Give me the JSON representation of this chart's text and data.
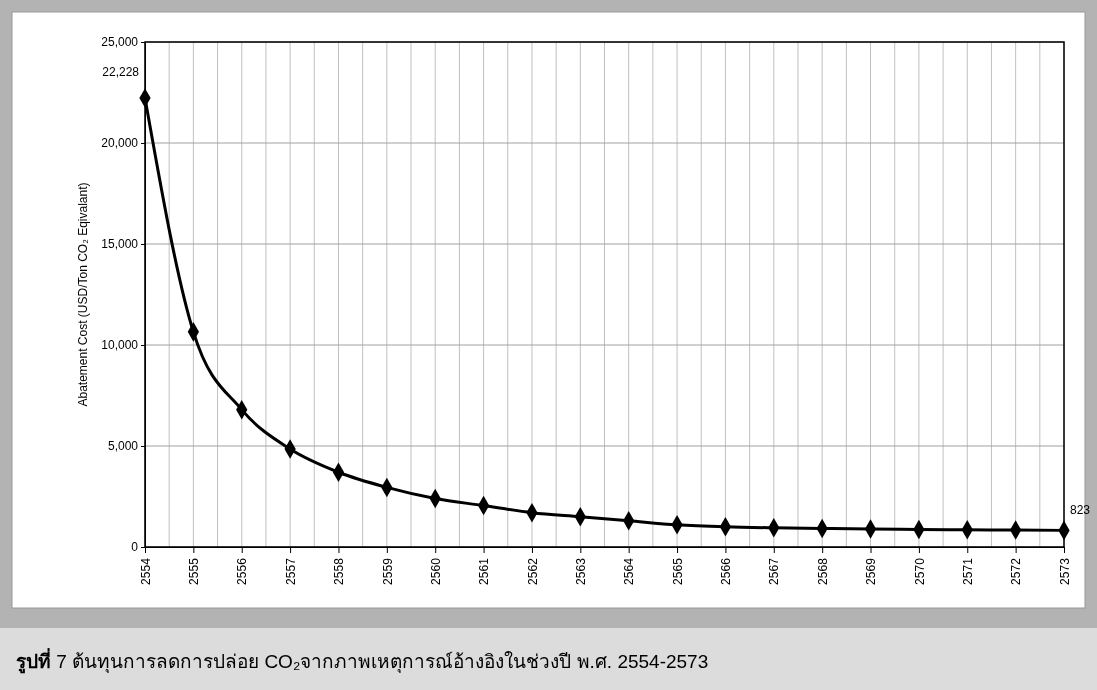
{
  "chart_data": {
    "type": "line",
    "title": "รูปที่ 7 ต้นทุนการลดการปล่อย CO₂จากภาพเหตุการณ์อ้างอิงในช่วงปี พ.ศ. 2554-2573",
    "ylabel": "Abatement Cost (USD/Ton CO₂ Eqivalant)",
    "categories": [
      "2554",
      "2555",
      "2556",
      "2557",
      "2558",
      "2559",
      "2560",
      "2561",
      "2562",
      "2563",
      "2564",
      "2565",
      "2566",
      "2567",
      "2568",
      "2569",
      "2570",
      "2571",
      "2572",
      "2573"
    ],
    "series": [
      {
        "color": "#000000",
        "values": [
          22228,
          10650,
          6800,
          4850,
          3700,
          2950,
          2400,
          2050,
          1700,
          1500,
          1300,
          1100,
          1000,
          950,
          920,
          890,
          870,
          850,
          840,
          823
        ],
        "value_labels": [
          "22,228",
          null,
          null,
          null,
          null,
          null,
          null,
          null,
          null,
          null,
          null,
          null,
          null,
          null,
          null,
          null,
          null,
          null,
          null,
          "823"
        ]
      }
    ],
    "ylim": [
      0,
      25000
    ],
    "yticks": [
      {
        "value": 0,
        "label": "0"
      },
      {
        "value": 5000,
        "label": "5,000"
      },
      {
        "value": 10000,
        "label": "10,000"
      },
      {
        "value": 15000,
        "label": "15,000"
      },
      {
        "value": 20000,
        "label": "20,000"
      },
      {
        "value": 25000,
        "label": "25,000"
      }
    ],
    "grid": true,
    "marker": "diamond",
    "line_style": "solid"
  }
}
